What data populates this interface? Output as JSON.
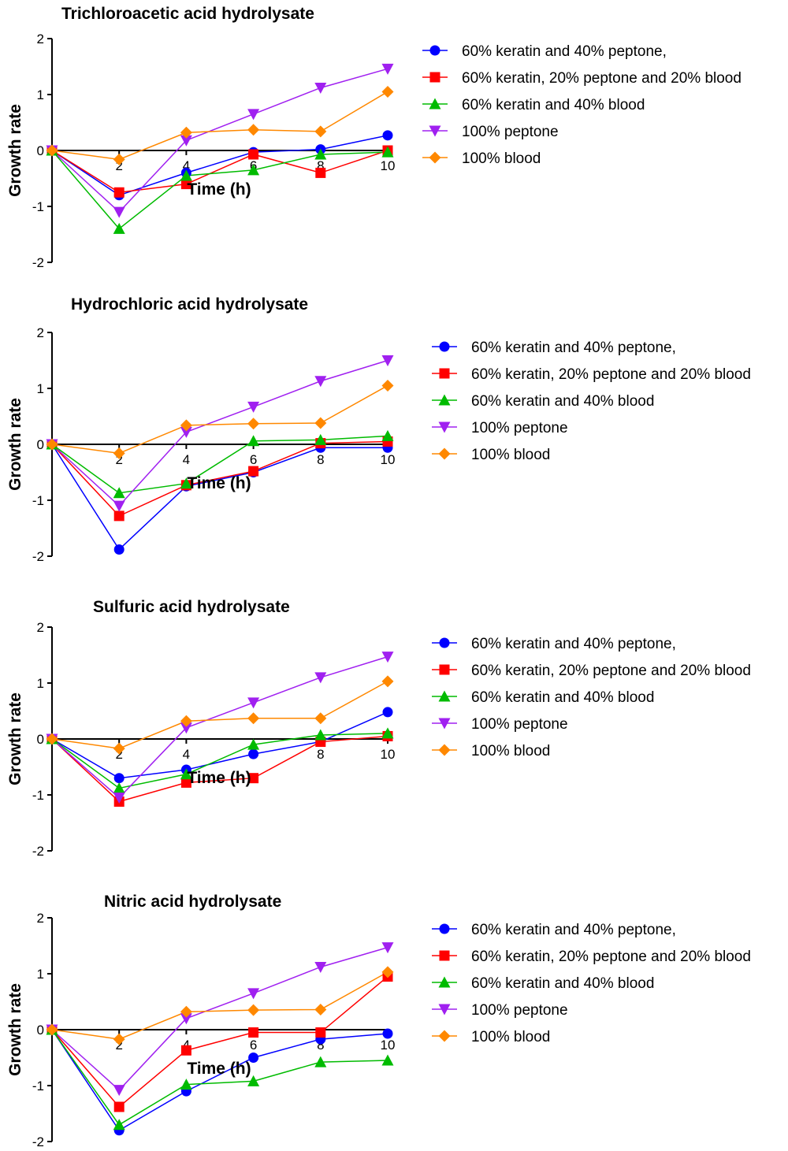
{
  "series_colors": [
    "#0000ff",
    "#ff0000",
    "#00bb00",
    "#a020f0",
    "#ff8800"
  ],
  "series_markers": [
    "circle",
    "square",
    "triangle-up",
    "triangle-down",
    "diamond"
  ],
  "chart_data": [
    {
      "type": "line",
      "title": "Trichloroacetic acid hydrolysate",
      "xlabel": "Time (h)",
      "ylabel": "Growth rate",
      "xlim": [
        0,
        10
      ],
      "ylim": [
        -2,
        2
      ],
      "xticks": [
        "2",
        "4",
        "6",
        "8",
        "10"
      ],
      "yticks": [
        "2",
        "1",
        "0",
        "-1",
        "-2"
      ],
      "x": [
        0,
        2,
        4,
        6,
        8,
        10
      ],
      "series": [
        {
          "name": "60% keratin and 40% peptone,",
          "values": [
            0,
            -0.8,
            -0.4,
            -0.03,
            0.02,
            0.27
          ]
        },
        {
          "name": "60% keratin, 20% peptone and 20% blood",
          "values": [
            0,
            -0.75,
            -0.6,
            -0.07,
            -0.4,
            0.0
          ]
        },
        {
          "name": "60% keratin and 40% blood",
          "values": [
            0,
            -1.4,
            -0.45,
            -0.35,
            -0.07,
            -0.03
          ]
        },
        {
          "name": "100% peptone",
          "values": [
            0,
            -1.1,
            0.18,
            0.65,
            1.12,
            1.46
          ]
        },
        {
          "name": "100% blood",
          "values": [
            0,
            -0.16,
            0.32,
            0.37,
            0.34,
            1.05
          ]
        }
      ]
    },
    {
      "type": "line",
      "title": "Hydrochloric acid hydrolysate",
      "xlabel": "Time (h)",
      "ylabel": "Growth rate",
      "xlim": [
        0,
        10
      ],
      "ylim": [
        -2,
        2
      ],
      "xticks": [
        "2",
        "4",
        "6",
        "8",
        "10"
      ],
      "yticks": [
        "2",
        "1",
        "0",
        "-1",
        "-2"
      ],
      "x": [
        0,
        2,
        4,
        6,
        8,
        10
      ],
      "series": [
        {
          "name": "60% keratin and 40% peptone,",
          "values": [
            0,
            -1.88,
            -0.75,
            -0.5,
            -0.06,
            -0.06
          ]
        },
        {
          "name": "60% keratin, 20% peptone and 20% blood",
          "values": [
            0,
            -1.28,
            -0.73,
            -0.48,
            0.02,
            0.05
          ]
        },
        {
          "name": "60% keratin and 40% blood",
          "values": [
            0,
            -0.87,
            -0.7,
            0.06,
            0.08,
            0.15
          ]
        },
        {
          "name": "100% peptone",
          "values": [
            0,
            -1.1,
            0.22,
            0.67,
            1.13,
            1.5
          ]
        },
        {
          "name": "100% blood",
          "values": [
            0,
            -0.16,
            0.34,
            0.37,
            0.38,
            1.05
          ]
        }
      ]
    },
    {
      "type": "line",
      "title": "Sulfuric acid hydrolysate",
      "xlabel": "Time (h)",
      "ylabel": "Growth rate",
      "xlim": [
        0,
        10
      ],
      "ylim": [
        -2,
        2
      ],
      "xticks": [
        "2",
        "4",
        "6",
        "8",
        "10"
      ],
      "yticks": [
        "2",
        "1",
        "0",
        "-1",
        "-2"
      ],
      "x": [
        0,
        2,
        4,
        6,
        8,
        10
      ],
      "series": [
        {
          "name": "60% keratin and 40% peptone,",
          "values": [
            0,
            -0.7,
            -0.55,
            -0.27,
            -0.05,
            0.48
          ]
        },
        {
          "name": "60% keratin, 20% peptone and 20% blood",
          "values": [
            0,
            -1.12,
            -0.78,
            -0.7,
            -0.05,
            0.05
          ]
        },
        {
          "name": "60% keratin and 40% blood",
          "values": [
            0,
            -0.88,
            -0.63,
            -0.1,
            0.07,
            0.1
          ]
        },
        {
          "name": "100% peptone",
          "values": [
            0,
            -1.05,
            0.2,
            0.65,
            1.1,
            1.47
          ]
        },
        {
          "name": "100% blood",
          "values": [
            0,
            -0.17,
            0.32,
            0.37,
            0.37,
            1.03
          ]
        }
      ]
    },
    {
      "type": "line",
      "title": "Nitric acid hydrolysate",
      "xlabel": "Time (h)",
      "ylabel": "Growth rate",
      "xlim": [
        0,
        10
      ],
      "ylim": [
        -2,
        2
      ],
      "xticks": [
        "2",
        "4",
        "6",
        "8",
        "10"
      ],
      "yticks": [
        "2",
        "1",
        "0",
        "-1",
        "-2"
      ],
      "x": [
        0,
        2,
        4,
        6,
        8,
        10
      ],
      "series": [
        {
          "name": "60% keratin and 40% peptone,",
          "values": [
            0,
            -1.8,
            -1.1,
            -0.5,
            -0.17,
            -0.07
          ]
        },
        {
          "name": "60% keratin, 20% peptone and 20% blood",
          "values": [
            0,
            -1.38,
            -0.37,
            -0.05,
            -0.05,
            0.95
          ]
        },
        {
          "name": "60% keratin and 40% blood",
          "values": [
            0,
            -1.7,
            -0.98,
            -0.92,
            -0.58,
            -0.55
          ]
        },
        {
          "name": "100% peptone",
          "values": [
            0,
            -1.08,
            0.2,
            0.65,
            1.12,
            1.47
          ]
        },
        {
          "name": "100% blood",
          "values": [
            0,
            -0.17,
            0.32,
            0.35,
            0.36,
            1.03
          ]
        }
      ]
    }
  ]
}
